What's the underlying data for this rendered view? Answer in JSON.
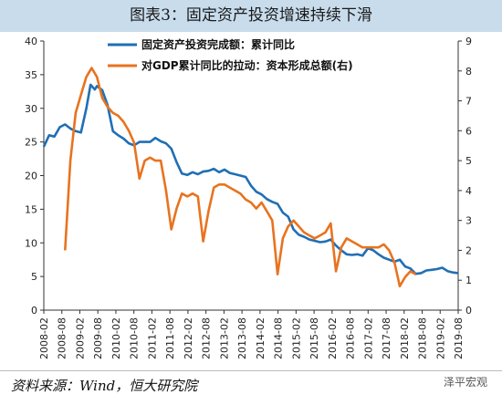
{
  "title": "图表3：固定资产投资增速持续下滑",
  "source": "资料来源：Wind，恒大研究院",
  "watermark": "泽平宏观",
  "chart_data": {
    "type": "line",
    "title": "图表3：固定资产投资增速持续下滑",
    "x_ticks": [
      "2008-02",
      "2008-08",
      "2009-02",
      "2009-08",
      "2010-02",
      "2010-08",
      "2011-02",
      "2011-08",
      "2012-02",
      "2012-08",
      "2013-02",
      "2013-08",
      "2014-02",
      "2014-08",
      "2015-02",
      "2015-08",
      "2016-02",
      "2016-08",
      "2017-02",
      "2017-08",
      "2018-02",
      "2018-08",
      "2019-02",
      "2019-08"
    ],
    "ylim_left": [
      0,
      40
    ],
    "ylim_right": [
      0,
      9
    ],
    "y_ticks_left": [
      0,
      5,
      10,
      15,
      20,
      25,
      30,
      35,
      40
    ],
    "y_ticks_right": [
      0,
      1,
      2,
      3,
      4,
      5,
      6,
      7,
      8,
      9
    ],
    "legend_position": "top",
    "series": [
      {
        "name": "固定资产投资完成额：累计同比",
        "axis": "left",
        "color": "#1f6fb4",
        "points": [
          [
            0,
            24.3
          ],
          [
            0.5,
            26.0
          ],
          [
            1,
            25.8
          ],
          [
            1.5,
            27.2
          ],
          [
            2,
            27.6
          ],
          [
            2.5,
            27.0
          ],
          [
            3,
            26.6
          ],
          [
            3.5,
            26.4
          ],
          [
            4,
            30.0
          ],
          [
            4.4,
            33.5
          ],
          [
            4.8,
            32.8
          ],
          [
            5,
            33.3
          ],
          [
            5.5,
            32.7
          ],
          [
            6,
            30.5
          ],
          [
            6.5,
            26.6
          ],
          [
            7,
            26.0
          ],
          [
            7.5,
            25.5
          ],
          [
            8,
            24.8
          ],
          [
            8.5,
            24.5
          ],
          [
            9,
            25.0
          ],
          [
            9.5,
            25.0
          ],
          [
            10,
            25.0
          ],
          [
            10.5,
            25.6
          ],
          [
            11,
            25.1
          ],
          [
            11.5,
            24.8
          ],
          [
            12,
            24.0
          ],
          [
            12.5,
            22.0
          ],
          [
            13,
            20.3
          ],
          [
            13.5,
            20.1
          ],
          [
            14,
            20.5
          ],
          [
            14.5,
            20.2
          ],
          [
            15,
            20.6
          ],
          [
            15.5,
            20.7
          ],
          [
            16,
            21.0
          ],
          [
            16.5,
            20.5
          ],
          [
            17,
            20.9
          ],
          [
            17.5,
            20.4
          ],
          [
            18,
            20.2
          ],
          [
            18.5,
            20.0
          ],
          [
            19,
            19.8
          ],
          [
            19.5,
            18.5
          ],
          [
            20,
            17.6
          ],
          [
            20.5,
            17.2
          ],
          [
            21,
            16.5
          ],
          [
            21.5,
            16.1
          ],
          [
            22,
            15.8
          ],
          [
            22.5,
            14.5
          ],
          [
            23,
            13.9
          ],
          [
            23.5,
            12.0
          ],
          [
            24,
            11.2
          ],
          [
            24.5,
            10.9
          ],
          [
            25,
            10.5
          ],
          [
            25.5,
            10.3
          ],
          [
            26,
            10.1
          ],
          [
            26.5,
            10.2
          ],
          [
            27,
            10.5
          ],
          [
            27.5,
            9.6
          ],
          [
            28,
            8.9
          ],
          [
            28.5,
            8.3
          ],
          [
            29,
            8.2
          ],
          [
            29.5,
            8.3
          ],
          [
            30,
            8.1
          ],
          [
            30.5,
            9.2
          ],
          [
            31,
            8.9
          ],
          [
            31.5,
            8.3
          ],
          [
            32,
            7.8
          ],
          [
            32.5,
            7.5
          ],
          [
            33,
            7.2
          ],
          [
            33.5,
            7.5
          ],
          [
            34,
            6.5
          ],
          [
            34.5,
            6.2
          ],
          [
            35,
            5.4
          ],
          [
            35.5,
            5.5
          ],
          [
            36,
            5.9
          ],
          [
            36.5,
            6.0
          ],
          [
            37,
            6.1
          ],
          [
            37.5,
            6.3
          ],
          [
            38,
            5.8
          ],
          [
            38.5,
            5.6
          ],
          [
            39,
            5.5
          ]
        ]
      },
      {
        "name": "对GDP累计同比的拉动：资本形成总额(右)",
        "axis": "right",
        "color": "#e8731f",
        "points": [
          [
            2,
            2.0
          ],
          [
            2.5,
            5.0
          ],
          [
            3,
            6.6
          ],
          [
            3.5,
            7.2
          ],
          [
            4,
            7.8
          ],
          [
            4.5,
            8.1
          ],
          [
            5,
            7.8
          ],
          [
            5.5,
            7.1
          ],
          [
            6,
            6.8
          ],
          [
            6.5,
            6.6
          ],
          [
            7,
            6.5
          ],
          [
            7.5,
            6.3
          ],
          [
            8,
            6.0
          ],
          [
            8.5,
            5.6
          ],
          [
            9,
            4.4
          ],
          [
            9.5,
            5.0
          ],
          [
            10,
            5.1
          ],
          [
            10.5,
            5.0
          ],
          [
            11,
            5.0
          ],
          [
            11.5,
            4.0
          ],
          [
            12,
            2.7
          ],
          [
            12.5,
            3.4
          ],
          [
            13,
            3.9
          ],
          [
            13.5,
            3.8
          ],
          [
            14,
            3.9
          ],
          [
            14.5,
            3.8
          ],
          [
            15,
            2.3
          ],
          [
            15.5,
            3.3
          ],
          [
            16,
            4.1
          ],
          [
            16.5,
            4.2
          ],
          [
            17,
            4.2
          ],
          [
            17.5,
            4.1
          ],
          [
            18,
            4.0
          ],
          [
            18.5,
            3.9
          ],
          [
            19,
            3.7
          ],
          [
            19.5,
            3.6
          ],
          [
            20,
            3.4
          ],
          [
            20.5,
            3.6
          ],
          [
            21,
            3.3
          ],
          [
            21.5,
            3.0
          ],
          [
            22,
            1.2
          ],
          [
            22.5,
            2.4
          ],
          [
            23,
            2.8
          ],
          [
            23.5,
            3.0
          ],
          [
            24,
            2.8
          ],
          [
            24.5,
            2.6
          ],
          [
            25,
            2.5
          ],
          [
            25.5,
            2.4
          ],
          [
            26,
            2.5
          ],
          [
            26.5,
            2.6
          ],
          [
            27,
            2.9
          ],
          [
            27.5,
            1.3
          ],
          [
            28,
            2.1
          ],
          [
            28.5,
            2.4
          ],
          [
            29,
            2.3
          ],
          [
            29.5,
            2.2
          ],
          [
            30,
            2.1
          ],
          [
            30.5,
            2.1
          ],
          [
            31,
            2.1
          ],
          [
            31.5,
            2.1
          ],
          [
            32,
            2.2
          ],
          [
            32.5,
            2.0
          ],
          [
            33,
            1.6
          ],
          [
            33.5,
            0.8
          ],
          [
            34,
            1.1
          ],
          [
            34.5,
            1.3
          ],
          [
            35,
            1.2
          ]
        ]
      }
    ]
  }
}
